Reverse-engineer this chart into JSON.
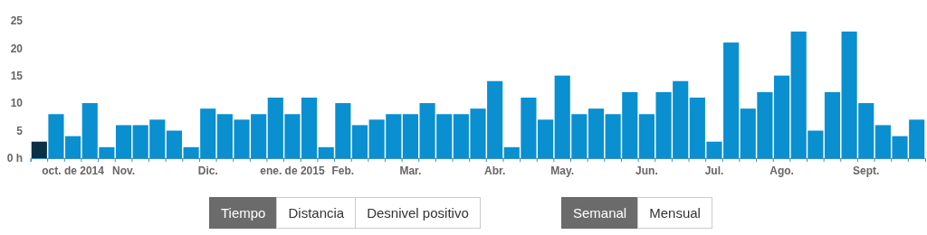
{
  "chart_data": {
    "type": "bar",
    "categories": [
      null,
      null,
      "oct. de 2014",
      null,
      null,
      "Nov.",
      null,
      null,
      null,
      null,
      "Dic.",
      null,
      null,
      null,
      null,
      "ene. de 2015",
      null,
      null,
      "Feb.",
      null,
      null,
      null,
      "Mar.",
      null,
      null,
      null,
      null,
      "Abr.",
      null,
      null,
      null,
      "May.",
      null,
      null,
      null,
      null,
      "Jun.",
      null,
      null,
      null,
      "Jul.",
      null,
      null,
      null,
      "Ago.",
      null,
      null,
      null,
      null,
      "Sept.",
      null,
      null,
      null
    ],
    "values": [
      3,
      8,
      4,
      10,
      2,
      6,
      6,
      7,
      5,
      2,
      9,
      8,
      7,
      8,
      11,
      8,
      11,
      2,
      10,
      6,
      7,
      8,
      8,
      10,
      8,
      8,
      9,
      14,
      2,
      11,
      7,
      15,
      8,
      9,
      8,
      12,
      8,
      12,
      14,
      11,
      3,
      21,
      9,
      12,
      15,
      23,
      5,
      12,
      23,
      10,
      6,
      4,
      7
    ],
    "colors": [
      "#0b2f45",
      "#0a8fd0",
      "#0a8fd0",
      "#0a8fd0",
      "#0a8fd0",
      "#0a8fd0",
      "#0a8fd0",
      "#0a8fd0",
      "#0a8fd0",
      "#0a8fd0",
      "#0a8fd0",
      "#0a8fd0",
      "#0a8fd0",
      "#0a8fd0",
      "#0a8fd0",
      "#0a8fd0",
      "#0a8fd0",
      "#0a8fd0",
      "#0a8fd0",
      "#0a8fd0",
      "#0a8fd0",
      "#0a8fd0",
      "#0a8fd0",
      "#0a8fd0",
      "#0a8fd0",
      "#0a8fd0",
      "#0a8fd0",
      "#0a8fd0",
      "#0a8fd0",
      "#0a8fd0",
      "#0a8fd0",
      "#0a8fd0",
      "#0a8fd0",
      "#0a8fd0",
      "#0a8fd0",
      "#0a8fd0",
      "#0a8fd0",
      "#0a8fd0",
      "#0a8fd0",
      "#0a8fd0",
      "#0a8fd0",
      "#0a8fd0",
      "#0a8fd0",
      "#0a8fd0",
      "#0a8fd0",
      "#0a8fd0",
      "#0a8fd0",
      "#0a8fd0",
      "#0a8fd0",
      "#0a8fd0",
      "#0a8fd0",
      "#0a8fd0",
      "#0a8fd0"
    ],
    "ylim": [
      0,
      25
    ],
    "yticks": [
      {
        "value": 0,
        "label": "0 h"
      },
      5,
      10,
      15,
      20,
      25
    ],
    "grid": false,
    "annotations": [
      "Tiempo",
      "Distancia",
      "Desnivel positivo",
      "Semanal",
      "Mensual"
    ]
  }
}
